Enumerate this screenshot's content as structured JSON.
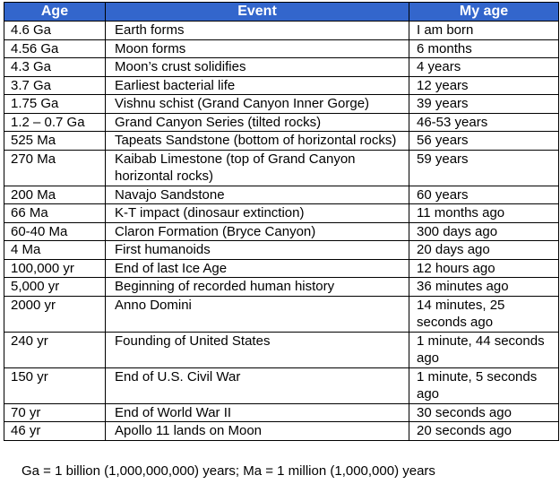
{
  "table": {
    "headers": [
      "Age",
      "Event",
      "My age"
    ],
    "rows": [
      {
        "age": "4.6 Ga",
        "event": "Earth forms",
        "my_age": "I am born"
      },
      {
        "age": "4.56 Ga",
        "event": "Moon forms",
        "my_age": "6 months"
      },
      {
        "age": "4.3 Ga",
        "event": "Moon’s crust solidifies",
        "my_age": "4 years"
      },
      {
        "age": "3.7 Ga",
        "event": "Earliest bacterial life",
        "my_age": "12 years"
      },
      {
        "age": "1.75 Ga",
        "event": "Vishnu schist (Grand Canyon Inner Gorge)",
        "my_age": "39 years"
      },
      {
        "age": "1.2 – 0.7 Ga",
        "event": "Grand Canyon Series (tilted rocks)",
        "my_age": "46-53 years"
      },
      {
        "age": "525 Ma",
        "event": "Tapeats Sandstone (bottom of horizontal rocks)",
        "my_age": "56 years"
      },
      {
        "age": "270 Ma",
        "event": "Kaibab Limestone (top of Grand Canyon horizontal rocks)",
        "my_age": "59 years"
      },
      {
        "age": "200 Ma",
        "event": "Navajo Sandstone",
        "my_age": "60 years"
      },
      {
        "age": "66 Ma",
        "event": "K-T impact (dinosaur extinction)",
        "my_age": "11 months ago"
      },
      {
        "age": "60-40 Ma",
        "event": "Claron Formation (Bryce Canyon)",
        "my_age": "300 days ago"
      },
      {
        "age": "4 Ma",
        "event": "First humanoids",
        "my_age": "20 days ago"
      },
      {
        "age": "100,000 yr",
        "event": "End of last Ice Age",
        "my_age": "12 hours ago"
      },
      {
        "age": "5,000 yr",
        "event": "Beginning of recorded human history",
        "my_age": "36 minutes ago"
      },
      {
        "age": "2000 yr",
        "event": "Anno Domini",
        "my_age": "14 minutes, 25 seconds ago"
      },
      {
        "age": "240 yr",
        "event": "Founding of United States",
        "my_age": "1 minute, 44 seconds ago"
      },
      {
        "age": "150 yr",
        "event": "End of U.S. Civil War",
        "my_age": "1 minute, 5 seconds ago"
      },
      {
        "age": "70 yr",
        "event": "End of World War II",
        "my_age": "30 seconds ago"
      },
      {
        "age": "46 yr",
        "event": "Apollo 11 lands on Moon",
        "my_age": "20 seconds ago"
      }
    ]
  },
  "footnote": "Ga = 1 billion (1,000,000,000) years; Ma = 1 million (1,000,000) years",
  "colors": {
    "header_background": "#3366cc",
    "header_text": "#ffffff"
  }
}
